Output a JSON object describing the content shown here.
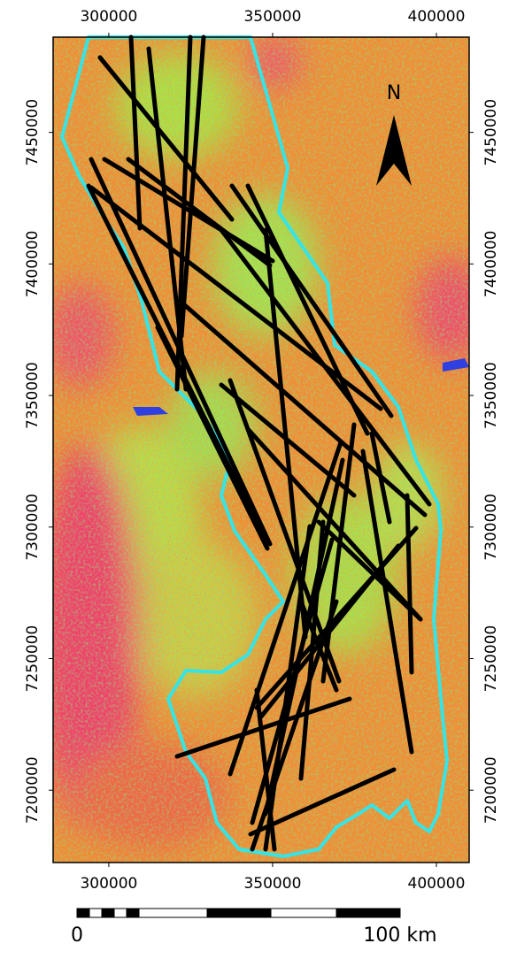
{
  "map": {
    "xlim": [
      283000,
      410000
    ],
    "ylim": [
      7172500,
      7486200
    ],
    "xticks": [
      300000,
      350000,
      400000
    ],
    "yticks": [
      7450000,
      7400000,
      7350000,
      7300000,
      7250000,
      7200000
    ],
    "north_label": "N",
    "scale_bar": {
      "start_label": "0",
      "end_label": "100 km"
    }
  }
}
